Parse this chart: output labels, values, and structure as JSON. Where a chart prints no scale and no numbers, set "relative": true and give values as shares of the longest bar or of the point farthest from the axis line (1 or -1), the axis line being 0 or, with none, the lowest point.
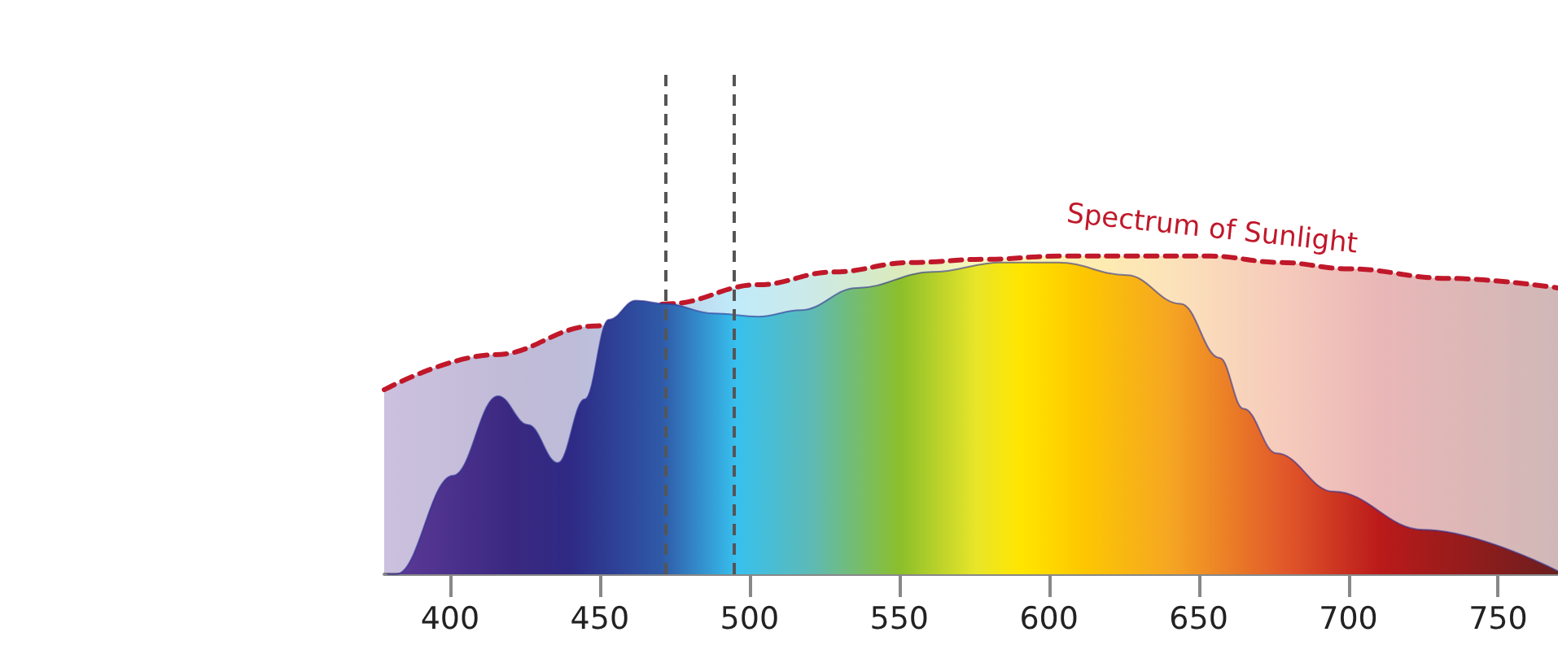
{
  "chart_data": {
    "type": "area",
    "relative": true,
    "xlim": [
      378,
      770
    ],
    "xticks": [
      400,
      450,
      500,
      550,
      600,
      650,
      700,
      750
    ],
    "series": [
      {
        "name": "Spectrum of Sunlight",
        "type": "line",
        "color": "#c0182a",
        "line_style": "dashed",
        "x": [
          378,
          415,
          448,
          473,
          503,
          528,
          554,
          579,
          604,
          629,
          654,
          677,
          700,
          733,
          770
        ],
        "values": [
          0.58,
          0.69,
          0.78,
          0.85,
          0.91,
          0.95,
          0.98,
          0.99,
          1.0,
          1.0,
          1.0,
          0.98,
          0.96,
          0.93,
          0.9
        ]
      },
      {
        "color": "#2e3192",
        "x": [
          379,
          382,
          401,
          416,
          426,
          436,
          445,
          453,
          462,
          472,
          488,
          503,
          517,
          536,
          561,
          584,
          603,
          626,
          644,
          657,
          665,
          676,
          695,
          725,
          770
        ],
        "values": [
          0,
          0,
          0.31,
          0.56,
          0.47,
          0.35,
          0.55,
          0.8,
          0.86,
          0.85,
          0.82,
          0.81,
          0.83,
          0.9,
          0.95,
          0.98,
          0.98,
          0.94,
          0.85,
          0.68,
          0.52,
          0.38,
          0.26,
          0.14,
          0.01
        ]
      }
    ],
    "ref_lines": [
      {
        "axis": "x",
        "value": 472,
        "color": "#555555",
        "line_style": "dashed"
      },
      {
        "axis": "x",
        "value": 495,
        "color": "#555555",
        "line_style": "dashed"
      }
    ],
    "grid": false,
    "legend": false
  }
}
